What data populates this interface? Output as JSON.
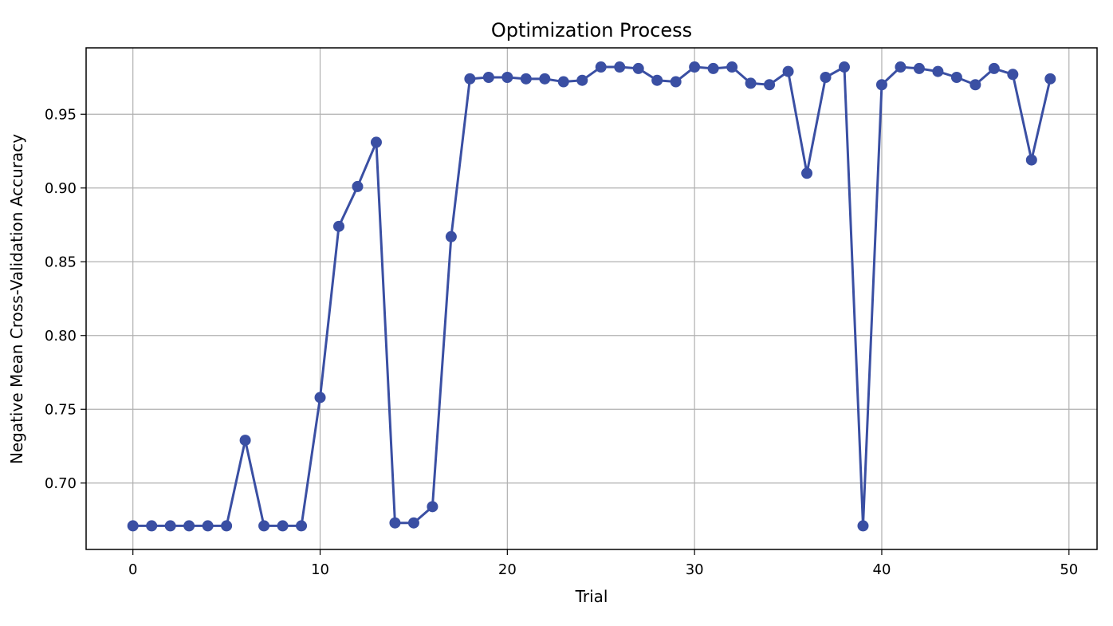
{
  "chart_data": {
    "type": "line",
    "title": "Optimization Process",
    "xlabel": "Trial",
    "ylabel": "Negative Mean Cross-Validation Accuracy",
    "xlim": [
      -2.5,
      51.5
    ],
    "ylim": [
      0.655,
      0.995
    ],
    "xticks": [
      0,
      10,
      20,
      30,
      40,
      50
    ],
    "yticks": [
      0.7,
      0.75,
      0.8,
      0.85,
      0.9,
      0.95
    ],
    "ytick_labels": [
      "0.70",
      "0.75",
      "0.80",
      "0.85",
      "0.90",
      "0.95"
    ],
    "grid": true,
    "marker": "circle",
    "colors": {
      "line": "#3a4fa3",
      "grid": "#b0b0b0",
      "axes": "#000000"
    },
    "series": [
      {
        "x": [
          0,
          1,
          2,
          3,
          4,
          5,
          6,
          7,
          8,
          9,
          10,
          11,
          12,
          13,
          14,
          15,
          16,
          17,
          18,
          19,
          20,
          21,
          22,
          23,
          24,
          25,
          26,
          27,
          28,
          29,
          30,
          31,
          32,
          33,
          34,
          35,
          36,
          37,
          38,
          39,
          40,
          41,
          42,
          43,
          44,
          45,
          46,
          47,
          48,
          49
        ],
        "values": [
          0.671,
          0.671,
          0.671,
          0.671,
          0.671,
          0.671,
          0.729,
          0.671,
          0.671,
          0.671,
          0.758,
          0.874,
          0.901,
          0.931,
          0.673,
          0.673,
          0.684,
          0.867,
          0.974,
          0.975,
          0.975,
          0.974,
          0.974,
          0.972,
          0.973,
          0.982,
          0.982,
          0.981,
          0.973,
          0.972,
          0.982,
          0.981,
          0.982,
          0.971,
          0.97,
          0.979,
          0.91,
          0.975,
          0.982,
          0.671,
          0.97,
          0.982,
          0.981,
          0.979,
          0.975,
          0.97,
          0.981,
          0.977,
          0.919,
          0.974
        ]
      }
    ]
  }
}
